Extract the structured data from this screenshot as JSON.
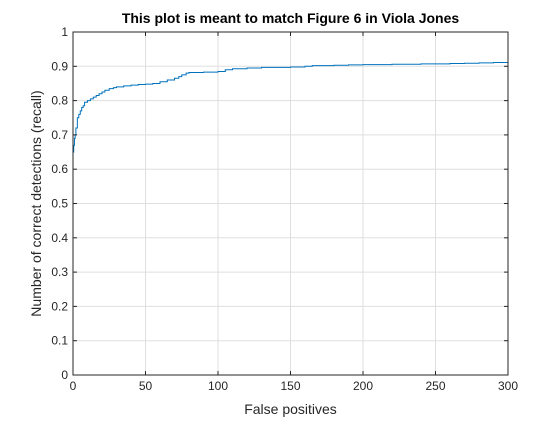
{
  "chart_data": {
    "type": "line",
    "title": "This plot is meant to match Figure 6 in Viola Jones",
    "xlabel": "False positives",
    "ylabel": "Number of correct detections (recall)",
    "xlim": [
      0,
      300
    ],
    "ylim": [
      0,
      1
    ],
    "xticks": [
      0,
      50,
      100,
      150,
      200,
      250,
      300
    ],
    "xtick_labels": [
      "0",
      "50",
      "100",
      "150",
      "200",
      "250",
      "300"
    ],
    "yticks": [
      0,
      0.1,
      0.2,
      0.3,
      0.4,
      0.5,
      0.6,
      0.7,
      0.8,
      0.9,
      1
    ],
    "ytick_labels": [
      "0",
      "0.1",
      "0.2",
      "0.3",
      "0.4",
      "0.5",
      "0.6",
      "0.7",
      "0.8",
      "0.9",
      "1"
    ],
    "grid": true,
    "line_style": "step",
    "series": [
      {
        "color": "#0072bd",
        "x": [
          0,
          0.5,
          1,
          1.5,
          2,
          3,
          4,
          5,
          6,
          7,
          8,
          10,
          12,
          14,
          16,
          18,
          20,
          22,
          25,
          28,
          30,
          35,
          40,
          45,
          50,
          55,
          60,
          65,
          70,
          73,
          75,
          78,
          80,
          90,
          100,
          105,
          110,
          120,
          130,
          150,
          160,
          165,
          180,
          190,
          200,
          220,
          240,
          260,
          270,
          280,
          290,
          300
        ],
        "y": [
          0.65,
          0.67,
          0.69,
          0.7,
          0.72,
          0.75,
          0.76,
          0.77,
          0.78,
          0.785,
          0.795,
          0.8,
          0.805,
          0.81,
          0.815,
          0.82,
          0.825,
          0.83,
          0.835,
          0.838,
          0.84,
          0.843,
          0.845,
          0.847,
          0.848,
          0.85,
          0.855,
          0.86,
          0.865,
          0.87,
          0.875,
          0.88,
          0.882,
          0.883,
          0.885,
          0.89,
          0.893,
          0.895,
          0.897,
          0.898,
          0.9,
          0.902,
          0.903,
          0.904,
          0.905,
          0.906,
          0.907,
          0.908,
          0.909,
          0.91,
          0.911,
          0.912
        ]
      }
    ]
  }
}
